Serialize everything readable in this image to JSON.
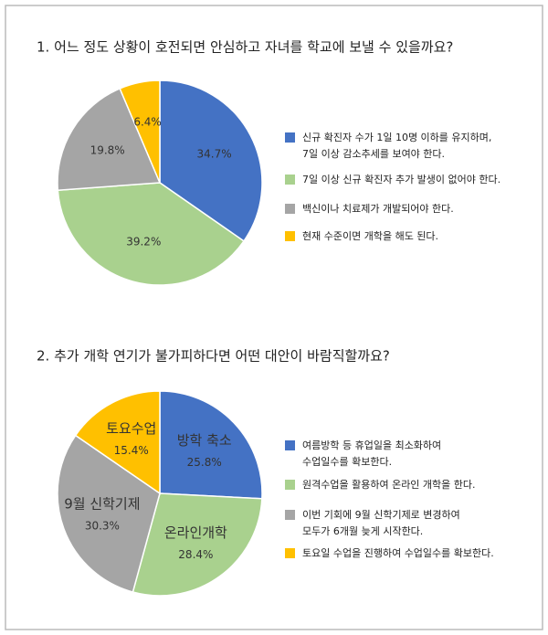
{
  "chart_data": [
    {
      "type": "pie",
      "title": "1. 어느 정도 상황이 호전되면 안심하고 자녀를 학교에 보낼 수 있을까요?",
      "categories": [
        [
          "신규 확진자 수가 1일 10명 이하를 유지하며,",
          "7일 이상 감소추세를 보여야 한다."
        ],
        [
          "7일 이상 신규 확진자 추가 발생이 없어야 한다."
        ],
        [
          "백신이나 치료제가 개발되어야 한다."
        ],
        [
          "현재 수준이면 개학을 해도 된다."
        ]
      ],
      "values": [
        34.7,
        39.2,
        19.8,
        6.4
      ],
      "value_labels": [
        "34.7%",
        "39.2%",
        "19.8%",
        "6.4%"
      ],
      "colors": [
        "#4472c4",
        "#a9d18e",
        "#a5a5a5",
        "#ffc000"
      ]
    },
    {
      "type": "pie",
      "title": "2. 추가 개학 연기가 불가피하다면 어떤 대안이 바람직할까요?",
      "categories": [
        [
          "여름방학 등 휴업일을 최소화하여",
          "수업일수를 확보한다."
        ],
        [
          "원격수업을 활용하여 온라인 개학을 한다."
        ],
        [
          "이번 기회에 9월 신학기제로 변경하여",
          "모두가 6개월 늦게 시작한다."
        ],
        [
          "토요일 수업을 진행하여 수업일수를 확보한다."
        ]
      ],
      "slice_labels": [
        "방학 축소",
        "온라인개학",
        "9월 신학기제",
        "토요수업"
      ],
      "values": [
        25.8,
        28.4,
        30.3,
        15.4
      ],
      "value_labels": [
        "25.8%",
        "28.4%",
        "30.3%",
        "15.4%"
      ],
      "colors": [
        "#4472c4",
        "#a9d18e",
        "#a5a5a5",
        "#ffc000"
      ]
    }
  ]
}
